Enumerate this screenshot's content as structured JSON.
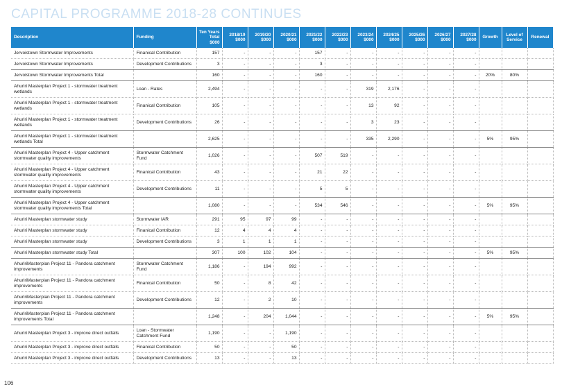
{
  "page": {
    "title": "CAPITAL PROGRAMME 2018-28 CONTINUES",
    "page_number": "106"
  },
  "table": {
    "headers": [
      "Description",
      "Funding",
      "Ten Years Total $000",
      "2018/19 $000",
      "2019/20 $000",
      "2020/21 $000",
      "2021/22 $000",
      "2022/23 $000",
      "2023/24 $000",
      "2024/25 $000",
      "2025/26 $000",
      "2026/27 $000",
      "2027/28 $000",
      "Growth",
      "Level of Service",
      "Renewal"
    ],
    "rows": [
      {
        "total": false,
        "tall": false,
        "cells": [
          "Jervoistown Stormwater Improvements",
          "Finanical Contribution",
          "157",
          "-",
          "-",
          "-",
          "157",
          "-",
          "-",
          "-",
          "-",
          "-",
          "-",
          "",
          "",
          ""
        ]
      },
      {
        "total": false,
        "tall": false,
        "cells": [
          "Jervoistown Stormwater Improvements",
          "Development Contributions",
          "3",
          "-",
          "-",
          "-",
          "3",
          "-",
          "-",
          "-",
          "-",
          "-",
          "-",
          "",
          "",
          ""
        ]
      },
      {
        "total": true,
        "tall": false,
        "cells": [
          "Jervoistown Stormwater Improvements Total",
          "",
          "160",
          "-",
          "-",
          "-",
          "160",
          "-",
          "-",
          "-",
          "-",
          "-",
          "-",
          "20%",
          "80%",
          ""
        ]
      },
      {
        "total": false,
        "tall": true,
        "cells": [
          "Ahuriri Masterplan Project 1 - stormwater treatment wetlands",
          "Loan - Rates",
          "2,494",
          "-",
          "-",
          "-",
          "-",
          "-",
          "319",
          "2,176",
          "-",
          "-",
          "-",
          "",
          "",
          ""
        ]
      },
      {
        "total": false,
        "tall": true,
        "cells": [
          "Ahuriri Masterplan Project 1 - stormwater treatment wetlands",
          "Finanical Contribution",
          "105",
          "-",
          "-",
          "-",
          "-",
          "-",
          "13",
          "92",
          "-",
          "-",
          "-",
          "",
          "",
          ""
        ]
      },
      {
        "total": false,
        "tall": true,
        "cells": [
          "Ahuriri Masterplan Project 1 - stormwater treatment wetlands",
          "Development Contributions",
          "26",
          "-",
          "-",
          "-",
          "-",
          "-",
          "3",
          "23",
          "-",
          "-",
          "-",
          "",
          "",
          ""
        ]
      },
      {
        "total": true,
        "tall": true,
        "cells": [
          "Ahuriri Masterplan Project 1 - stormwater treatment wetlands Total",
          "",
          "2,625",
          "-",
          "-",
          "-",
          "-",
          "-",
          "335",
          "2,290",
          "-",
          "-",
          "-",
          "5%",
          "95%",
          ""
        ]
      },
      {
        "total": false,
        "tall": true,
        "cells": [
          "Ahuriri Masterplan Project 4 - Upper catchment stormwater quality improvements",
          "Stormwater Catchment Fund",
          "1,026",
          "-",
          "-",
          "-",
          "507",
          "519",
          "-",
          "-",
          "-",
          "-",
          "-",
          "",
          "",
          ""
        ]
      },
      {
        "total": false,
        "tall": true,
        "cells": [
          "Ahuriri Masterplan Project 4 - Upper catchment stormwater quality improvements",
          "Finanical Contribution",
          "43",
          "-",
          "-",
          "-",
          "21",
          "22",
          "-",
          "-",
          "-",
          "-",
          "-",
          "",
          "",
          ""
        ]
      },
      {
        "total": false,
        "tall": true,
        "cells": [
          "Ahuriri Masterplan Project 4 - Upper catchment stormwater quality improvements",
          "Development Contributions",
          "11",
          "-",
          "-",
          "-",
          "5",
          "5",
          "-",
          "-",
          "-",
          "-",
          "-",
          "",
          "",
          ""
        ]
      },
      {
        "total": true,
        "tall": true,
        "cells": [
          "Ahuriri Masterplan Project 4 - Upper catchment stormwater quality improvements Total",
          "",
          "1,080",
          "-",
          "-",
          "-",
          "534",
          "546",
          "-",
          "-",
          "-",
          "-",
          "-",
          "5%",
          "95%",
          ""
        ]
      },
      {
        "total": false,
        "tall": false,
        "cells": [
          "Ahuriri Masterplan stormwater study",
          "Stormwater IAR",
          "291",
          "95",
          "97",
          "99",
          "-",
          "-",
          "-",
          "-",
          "-",
          "-",
          "-",
          "",
          "",
          ""
        ]
      },
      {
        "total": false,
        "tall": false,
        "cells": [
          "Ahuriri Masterplan stormwater study",
          "Finanical Contribution",
          "12",
          "4",
          "4",
          "4",
          "-",
          "-",
          "-",
          "-",
          "-",
          "-",
          "-",
          "",
          "",
          ""
        ]
      },
      {
        "total": false,
        "tall": false,
        "cells": [
          "Ahuriri Masterplan stormwater study",
          "Development Contributions",
          "3",
          "1",
          "1",
          "1",
          "-",
          "-",
          "-",
          "-",
          "-",
          "-",
          "-",
          "",
          "",
          ""
        ]
      },
      {
        "total": true,
        "tall": false,
        "cells": [
          "Ahuriri Masterplan stormwater study Total",
          "",
          "307",
          "100",
          "102",
          "104",
          "-",
          "-",
          "-",
          "-",
          "-",
          "-",
          "-",
          "5%",
          "95%",
          ""
        ]
      },
      {
        "total": false,
        "tall": true,
        "cells": [
          "AhuririMasterplan Project 11 - Pandora catchment improvements",
          "Stormwater Catchment Fund",
          "1,186",
          "-",
          "194",
          "992",
          "-",
          "-",
          "-",
          "-",
          "-",
          "-",
          "-",
          "",
          "",
          ""
        ]
      },
      {
        "total": false,
        "tall": true,
        "cells": [
          "AhuririMasterplan Project 11 - Pandora catchment improvements",
          "Finanical Contribution",
          "50",
          "-",
          "8",
          "42",
          "-",
          "-",
          "-",
          "-",
          "-",
          "-",
          "-",
          "",
          "",
          ""
        ]
      },
      {
        "total": false,
        "tall": true,
        "cells": [
          "AhuririMasterplan Project 11 - Pandora catchment improvements",
          "Development Contributions",
          "12",
          "-",
          "2",
          "10",
          "-",
          "-",
          "-",
          "-",
          "-",
          "-",
          "-",
          "",
          "",
          ""
        ]
      },
      {
        "total": true,
        "tall": true,
        "cells": [
          "AhuririMasterplan Project 11 - Pandora catchment improvements Total",
          "",
          "1,248",
          "-",
          "204",
          "1,044",
          "-",
          "-",
          "-",
          "-",
          "-",
          "-",
          "-",
          "5%",
          "95%",
          ""
        ]
      },
      {
        "total": false,
        "tall": true,
        "cells": [
          "Ahuriri Masterplan Project 3 - improve direct outfalls",
          "Loan - Stormwater Catchment Fund",
          "1,190",
          "-",
          "-",
          "1,190",
          "-",
          "-",
          "-",
          "-",
          "-",
          "-",
          "-",
          "",
          "",
          ""
        ]
      },
      {
        "total": false,
        "tall": false,
        "cells": [
          "Ahuriri Masterplan Project 3 - improve direct outfalls",
          "Finanical Contribution",
          "50",
          "-",
          "-",
          "50",
          "-",
          "-",
          "-",
          "-",
          "-",
          "-",
          "-",
          "",
          "",
          ""
        ]
      },
      {
        "total": false,
        "tall": false,
        "cells": [
          "Ahuriri Masterplan Project 3 - improve direct outfalls",
          "Development Contributions",
          "13",
          "-",
          "-",
          "13",
          "-",
          "-",
          "-",
          "-",
          "-",
          "-",
          "-",
          "",
          "",
          ""
        ]
      }
    ]
  },
  "colors": {
    "header_bg": "#1f86cc",
    "title": "#c9dff2"
  }
}
